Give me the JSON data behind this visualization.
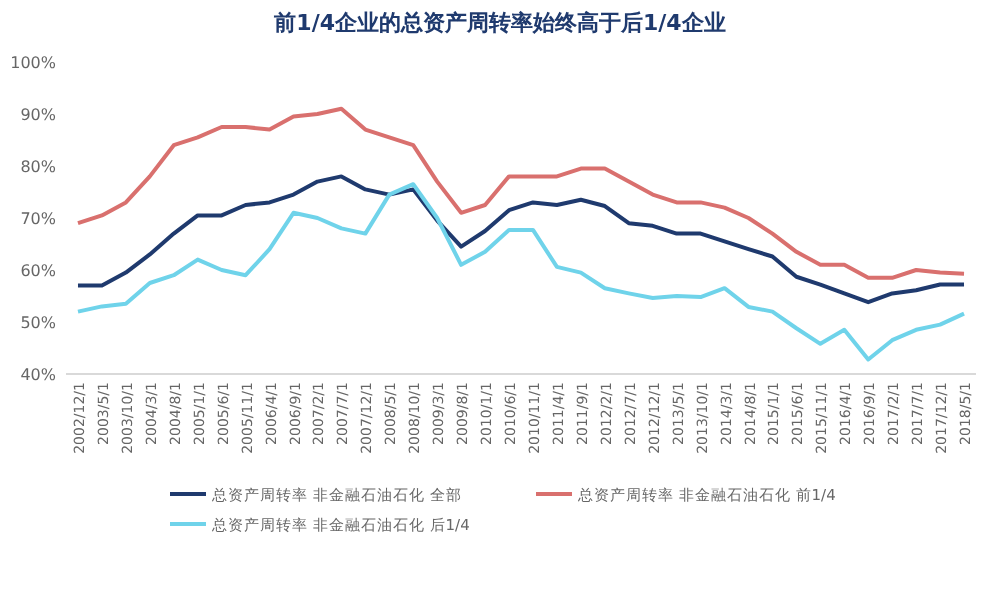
{
  "chart_data": {
    "type": "line",
    "title": "前1/4企业的总资产周转率始终高于后1/4企业",
    "categories": [
      "2002/12/1",
      "2003/5/1",
      "2003/10/1",
      "2004/3/1",
      "2004/8/1",
      "2005/1/1",
      "2005/6/1",
      "2005/11/1",
      "2006/4/1",
      "2006/9/1",
      "2007/2/1",
      "2007/7/1",
      "2007/12/1",
      "2008/5/1",
      "2008/10/1",
      "2009/3/1",
      "2009/8/1",
      "2010/1/1",
      "2010/6/1",
      "2010/11/1",
      "2011/4/1",
      "2011/9/1",
      "2012/2/1",
      "2012/7/1",
      "2012/12/1",
      "2013/5/1",
      "2013/10/1",
      "2014/3/1",
      "2014/8/1",
      "2015/1/1",
      "2015/6/1",
      "2015/11/1",
      "2016/4/1",
      "2016/9/1",
      "2017/2/1",
      "2017/7/1",
      "2017/12/1",
      "2018/5/1"
    ],
    "series": [
      {
        "name": "总资产周转率 非金融石油石化 全部",
        "color": "#1f3a6e",
        "values": [
          57,
          57,
          59.5,
          63,
          67,
          70.5,
          70.5,
          72.5,
          73,
          74.5,
          77,
          78,
          75.5,
          74.5,
          75.5,
          69.5,
          64.5,
          67.5,
          71.5,
          73,
          72.5,
          73.5,
          72.3,
          69,
          68.5,
          67,
          67,
          65.5,
          64,
          62.6,
          58.7,
          57.2,
          55.5,
          53.8,
          55.5,
          56.1,
          57.2,
          57.2
        ]
      },
      {
        "name": "总资产周转率 非金融石油石化 前1/4",
        "color": "#d9706e",
        "values": [
          69,
          70.5,
          73,
          78,
          84,
          85.5,
          87.5,
          87.5,
          87,
          89.5,
          90,
          91,
          87,
          85.5,
          84,
          77,
          71,
          72.5,
          78,
          78,
          78,
          79.5,
          79.5,
          77,
          74.5,
          73,
          73,
          72,
          70,
          67,
          63.5,
          61,
          61,
          58.5,
          58.5,
          60,
          59.5,
          59.3
        ]
      },
      {
        "name": "总资产周转率 非金融石油石化 后1/4",
        "color": "#6fd3ea",
        "values": [
          52,
          53,
          53.5,
          57.5,
          59,
          62,
          60,
          59,
          64,
          71,
          70,
          68,
          67,
          74.5,
          76.5,
          70,
          61,
          63.5,
          67.7,
          67.7,
          60.6,
          59.5,
          56.5,
          55.5,
          54.6,
          55,
          54.8,
          56.5,
          52.9,
          52,
          48.8,
          45.8,
          48.5,
          42.8,
          46.5,
          48.5,
          49.5,
          51.6
        ]
      }
    ],
    "ylim": [
      40,
      100
    ],
    "yticks": [
      {
        "value": 40,
        "label": "40%"
      },
      {
        "value": 50,
        "label": "50%"
      },
      {
        "value": 60,
        "label": "60%"
      },
      {
        "value": 70,
        "label": "70%"
      },
      {
        "value": 80,
        "label": "80%"
      },
      {
        "value": 90,
        "label": "90%"
      },
      {
        "value": 100,
        "label": "100%"
      }
    ],
    "legend": "bottom",
    "marker": "none",
    "line_style": "solid"
  }
}
